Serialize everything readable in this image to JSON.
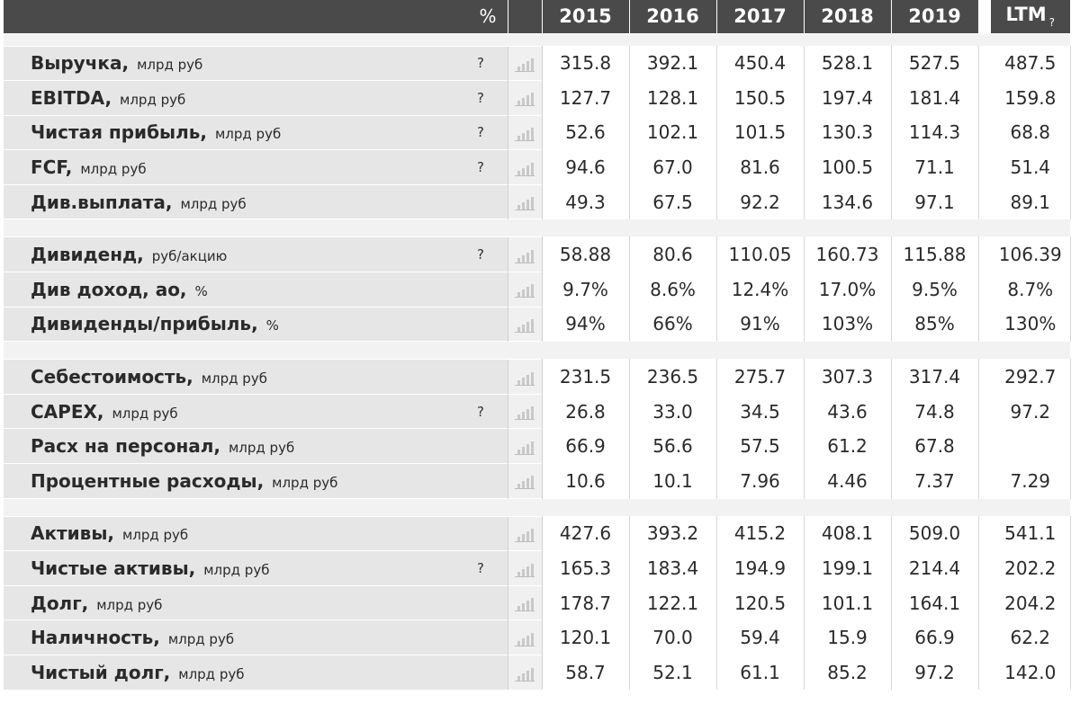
{
  "header": {
    "percent_label": "%",
    "years": [
      "2015",
      "2016",
      "2017",
      "2018",
      "2019"
    ],
    "ltm_label": "LTM",
    "ltm_help": "?"
  },
  "groups": [
    {
      "rows": [
        {
          "name": "Выручка,",
          "unit": "млрд руб",
          "help": "?",
          "values": [
            "315.8",
            "392.1",
            "450.4",
            "528.1",
            "527.5"
          ],
          "ltm": "487.5"
        },
        {
          "name": "EBITDA,",
          "unit": "млрд руб",
          "help": "?",
          "values": [
            "127.7",
            "128.1",
            "150.5",
            "197.4",
            "181.4"
          ],
          "ltm": "159.8"
        },
        {
          "name": "Чистая прибыль,",
          "unit": "млрд руб",
          "help": "?",
          "values": [
            "52.6",
            "102.1",
            "101.5",
            "130.3",
            "114.3"
          ],
          "ltm": "68.8"
        },
        {
          "name": "FCF,",
          "unit": "млрд руб",
          "help": "?",
          "values": [
            "94.6",
            "67.0",
            "81.6",
            "100.5",
            "71.1"
          ],
          "ltm": "51.4"
        },
        {
          "name": "Див.выплата,",
          "unit": "млрд руб",
          "help": "",
          "values": [
            "49.3",
            "67.5",
            "92.2",
            "134.6",
            "97.1"
          ],
          "ltm": "89.1"
        }
      ]
    },
    {
      "rows": [
        {
          "name": "Дивиденд,",
          "unit": "руб/акцию",
          "help": "?",
          "values": [
            "58.88",
            "80.6",
            "110.05",
            "160.73",
            "115.88"
          ],
          "ltm": "106.39"
        },
        {
          "name": "Див доход, ао,",
          "unit": "%",
          "help": "",
          "values": [
            "9.7%",
            "8.6%",
            "12.4%",
            "17.0%",
            "9.5%"
          ],
          "ltm": "8.7%"
        },
        {
          "name": "Дивиденды/прибыль,",
          "unit": "%",
          "help": "",
          "values": [
            "94%",
            "66%",
            "91%",
            "103%",
            "85%"
          ],
          "ltm": "130%"
        }
      ]
    },
    {
      "rows": [
        {
          "name": "Себестоимость,",
          "unit": "млрд руб",
          "help": "",
          "values": [
            "231.5",
            "236.5",
            "275.7",
            "307.3",
            "317.4"
          ],
          "ltm": "292.7"
        },
        {
          "name": "CAPEX,",
          "unit": "млрд руб",
          "help": "?",
          "values": [
            "26.8",
            "33.0",
            "34.5",
            "43.6",
            "74.8"
          ],
          "ltm": "97.2"
        },
        {
          "name": "Расх на персонал,",
          "unit": "млрд руб",
          "help": "",
          "values": [
            "66.9",
            "56.6",
            "57.5",
            "61.2",
            "67.8"
          ],
          "ltm": ""
        },
        {
          "name": "Процентные расходы,",
          "unit": "млрд руб",
          "help": "",
          "values": [
            "10.6",
            "10.1",
            "7.96",
            "4.46",
            "7.37"
          ],
          "ltm": "7.29"
        }
      ]
    },
    {
      "rows": [
        {
          "name": "Активы,",
          "unit": "млрд руб",
          "help": "",
          "values": [
            "427.6",
            "393.2",
            "415.2",
            "408.1",
            "509.0"
          ],
          "ltm": "541.1"
        },
        {
          "name": "Чистые активы,",
          "unit": "млрд руб",
          "help": "?",
          "values": [
            "165.3",
            "183.4",
            "194.9",
            "199.1",
            "214.4"
          ],
          "ltm": "202.2"
        },
        {
          "name": "Долг,",
          "unit": "млрд руб",
          "help": "",
          "values": [
            "178.7",
            "122.1",
            "120.5",
            "101.1",
            "164.1"
          ],
          "ltm": "204.2"
        },
        {
          "name": "Наличность,",
          "unit": "млрд руб",
          "help": "",
          "values": [
            "120.1",
            "70.0",
            "59.4",
            "15.9",
            "66.9"
          ],
          "ltm": "62.2"
        },
        {
          "name": "Чистый долг,",
          "unit": "млрд руб",
          "help": "",
          "values": [
            "58.7",
            "52.1",
            "61.1",
            "85.2",
            "97.2"
          ],
          "ltm": "142.0"
        }
      ]
    }
  ],
  "icons": {
    "chart_button": "bar-chart-icon"
  }
}
